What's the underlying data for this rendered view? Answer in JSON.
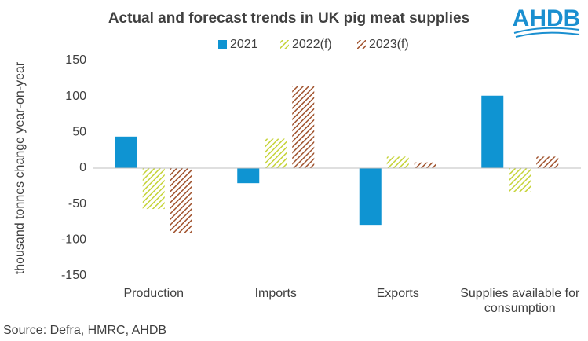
{
  "chart_data": {
    "type": "bar",
    "title": "Actual and forecast trends in UK pig meat supplies",
    "logo": "AHDB",
    "y_label": "thousand tonnes change year-on-year",
    "source": "Source: Defra, HMRC, AHDB",
    "categories": [
      "Production",
      "Imports",
      "Exports",
      "Supplies available for consumption"
    ],
    "series": [
      {
        "name": "2021",
        "color": "#0f94d2",
        "hatch": false,
        "values": [
          44,
          -21,
          -79,
          101
        ]
      },
      {
        "name": "2022(f)",
        "color": "#c5d337",
        "hatch": true,
        "values": [
          -57,
          41,
          16,
          -33
        ]
      },
      {
        "name": "2023(f)",
        "color": "#a0522d",
        "hatch": true,
        "values": [
          -90,
          114,
          8,
          16
        ]
      }
    ],
    "ylim": [
      -150,
      150
    ],
    "yticks": [
      -150,
      -100,
      -50,
      0,
      50,
      100,
      150
    ],
    "grid": false
  }
}
